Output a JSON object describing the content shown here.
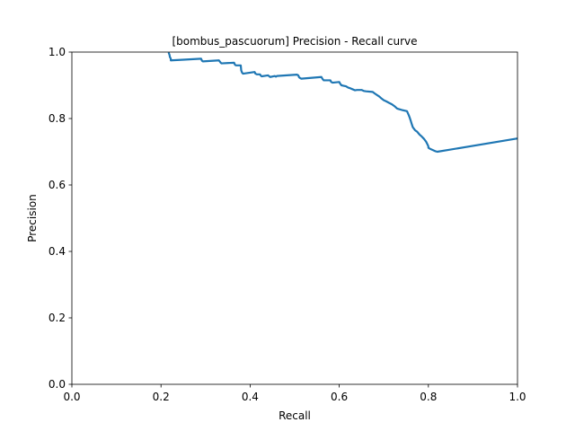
{
  "chart_data": {
    "type": "line",
    "title": "[bombus_pascuorum] Precision - Recall curve",
    "xlabel": "Recall",
    "ylabel": "Precision",
    "xlim": [
      0.0,
      1.0
    ],
    "ylim": [
      0.0,
      1.0
    ],
    "xticks": [
      "0.0",
      "0.2",
      "0.4",
      "0.6",
      "0.8",
      "1.0"
    ],
    "yticks": [
      "0.0",
      "0.2",
      "0.4",
      "0.6",
      "0.8",
      "1.0"
    ],
    "grid": false,
    "line_color": "#1f77b4",
    "series": [
      {
        "x": [
          0.217,
          0.219,
          0.22,
          0.222,
          0.222,
          0.25,
          0.29,
          0.292,
          0.294,
          0.33,
          0.334,
          0.336,
          0.364,
          0.366,
          0.368,
          0.379,
          0.38,
          0.382,
          0.384,
          0.41,
          0.412,
          0.415,
          0.422,
          0.424,
          0.426,
          0.44,
          0.442,
          0.445,
          0.455,
          0.458,
          0.46,
          0.505,
          0.508,
          0.51,
          0.512,
          0.515,
          0.56,
          0.562,
          0.565,
          0.58,
          0.582,
          0.585,
          0.6,
          0.602,
          0.605,
          0.615,
          0.62,
          0.625,
          0.63,
          0.635,
          0.64,
          0.65,
          0.655,
          0.66,
          0.675,
          0.68,
          0.69,
          0.695,
          0.7,
          0.705,
          0.712,
          0.718,
          0.725,
          0.73,
          0.735,
          0.74,
          0.752,
          0.756,
          0.758,
          0.76,
          0.763,
          0.765,
          0.77,
          0.775,
          0.78,
          0.785,
          0.79,
          0.795,
          0.798,
          0.8,
          0.8,
          0.805,
          0.815,
          0.82,
          1.0
        ],
        "y": [
          0.999,
          0.992,
          0.985,
          0.98,
          0.975,
          0.977,
          0.98,
          0.974,
          0.972,
          0.975,
          0.968,
          0.966,
          0.968,
          0.962,
          0.96,
          0.96,
          0.945,
          0.938,
          0.935,
          0.94,
          0.935,
          0.933,
          0.933,
          0.929,
          0.927,
          0.93,
          0.928,
          0.925,
          0.928,
          0.926,
          0.928,
          0.932,
          0.93,
          0.924,
          0.922,
          0.92,
          0.925,
          0.92,
          0.915,
          0.915,
          0.91,
          0.908,
          0.91,
          0.905,
          0.9,
          0.897,
          0.893,
          0.891,
          0.888,
          0.885,
          0.886,
          0.886,
          0.883,
          0.882,
          0.88,
          0.875,
          0.866,
          0.86,
          0.855,
          0.852,
          0.847,
          0.843,
          0.836,
          0.83,
          0.828,
          0.826,
          0.822,
          0.81,
          0.803,
          0.795,
          0.782,
          0.774,
          0.765,
          0.76,
          0.752,
          0.746,
          0.739,
          0.73,
          0.722,
          0.716,
          0.712,
          0.708,
          0.702,
          0.7,
          0.74
        ]
      }
    ]
  }
}
